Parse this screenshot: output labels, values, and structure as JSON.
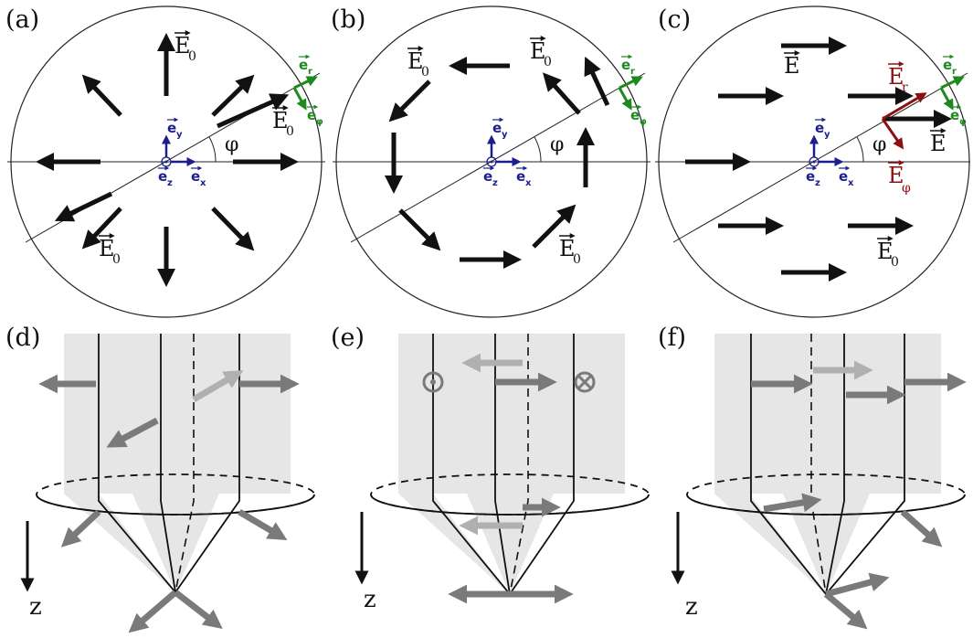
{
  "panel_labels": {
    "a": "(a)",
    "b": "(b)",
    "c": "(c)",
    "d": "(d)",
    "e": "(e)",
    "f": "(f)"
  },
  "field": {
    "E0": "E",
    "E0_sub": "0",
    "E": "E",
    "Er": "E",
    "Er_sub": "r",
    "Ephi": "E",
    "Ephi_sub": "φ"
  },
  "unit_vectors": {
    "e": "e",
    "x": "x",
    "y": "y",
    "z": "z",
    "r": "r",
    "phi": "φ"
  },
  "angle": "φ",
  "axis_z": "z",
  "colors": {
    "black": "#111111",
    "blue": "#1b1f8c",
    "green": "#1e8a1e",
    "red": "#8c1010",
    "gray": "#7a7a7a",
    "lightgray": "#b0b0b0",
    "cone": "#e6e6e6"
  }
}
